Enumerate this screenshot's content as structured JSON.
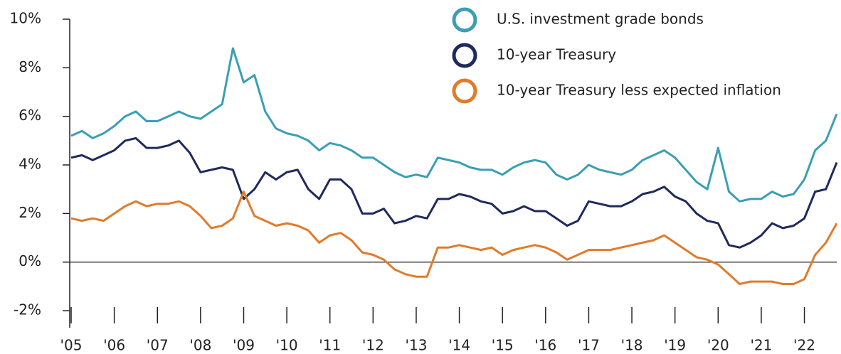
{
  "chart_data": {
    "type": "line",
    "x": [
      2005,
      2005.25,
      2005.5,
      2005.75,
      2006,
      2006.25,
      2006.5,
      2006.75,
      2007,
      2007.25,
      2007.5,
      2007.75,
      2008,
      2008.25,
      2008.5,
      2008.75,
      2009,
      2009.25,
      2009.5,
      2009.75,
      2010,
      2010.25,
      2010.5,
      2010.75,
      2011,
      2011.25,
      2011.5,
      2011.75,
      2012,
      2012.25,
      2012.5,
      2012.75,
      2013,
      2013.25,
      2013.5,
      2013.75,
      2014,
      2014.25,
      2014.5,
      2014.75,
      2015,
      2015.25,
      2015.5,
      2015.75,
      2016,
      2016.25,
      2016.5,
      2016.75,
      2017,
      2017.25,
      2017.5,
      2017.75,
      2018,
      2018.25,
      2018.5,
      2018.75,
      2019,
      2019.25,
      2019.5,
      2019.75,
      2020,
      2020.25,
      2020.5,
      2020.75,
      2021,
      2021.25,
      2021.5,
      2021.75,
      2022,
      2022.25,
      2022.5,
      2022.75
    ],
    "series": [
      {
        "name": "U.S. investment grade bonds",
        "color": "#3a9fb3",
        "values": [
          5.2,
          5.4,
          5.1,
          5.3,
          5.6,
          6.0,
          6.2,
          5.8,
          5.8,
          6.0,
          6.2,
          6.0,
          5.9,
          6.2,
          6.5,
          8.8,
          7.4,
          7.7,
          6.2,
          5.5,
          5.3,
          5.2,
          5.0,
          4.6,
          4.9,
          4.8,
          4.6,
          4.3,
          4.3,
          4.0,
          3.7,
          3.5,
          3.6,
          3.5,
          4.3,
          4.2,
          4.1,
          3.9,
          3.8,
          3.8,
          3.6,
          3.9,
          4.1,
          4.2,
          4.1,
          3.6,
          3.4,
          3.6,
          4.0,
          3.8,
          3.7,
          3.6,
          3.8,
          4.2,
          4.4,
          4.6,
          4.3,
          3.8,
          3.3,
          3.0,
          4.7,
          2.9,
          2.5,
          2.6,
          2.6,
          2.9,
          2.7,
          2.8,
          3.4,
          4.6,
          5.0,
          6.1
        ]
      },
      {
        "name": "10-year Treasury",
        "color": "#1f2a5c",
        "values": [
          4.3,
          4.4,
          4.2,
          4.4,
          4.6,
          5.0,
          5.1,
          4.7,
          4.7,
          4.8,
          5.0,
          4.5,
          3.7,
          3.8,
          3.9,
          3.8,
          2.6,
          3.0,
          3.7,
          3.4,
          3.7,
          3.8,
          3.0,
          2.6,
          3.4,
          3.4,
          3.0,
          2.0,
          2.0,
          2.2,
          1.6,
          1.7,
          1.9,
          1.8,
          2.6,
          2.6,
          2.8,
          2.7,
          2.5,
          2.4,
          2.0,
          2.1,
          2.3,
          2.1,
          2.1,
          1.8,
          1.5,
          1.7,
          2.5,
          2.4,
          2.3,
          2.3,
          2.5,
          2.8,
          2.9,
          3.1,
          2.7,
          2.5,
          2.0,
          1.7,
          1.6,
          0.7,
          0.6,
          0.8,
          1.1,
          1.6,
          1.4,
          1.5,
          1.8,
          2.9,
          3.0,
          4.1
        ]
      },
      {
        "name": "10-year Treasury less expected inflation",
        "color": "#e07b2c",
        "values": [
          1.8,
          1.7,
          1.8,
          1.7,
          2.0,
          2.3,
          2.5,
          2.3,
          2.4,
          2.4,
          2.5,
          2.3,
          1.9,
          1.4,
          1.5,
          1.8,
          2.9,
          1.9,
          1.7,
          1.5,
          1.6,
          1.5,
          1.3,
          0.8,
          1.1,
          1.2,
          0.9,
          0.4,
          0.3,
          0.1,
          -0.3,
          -0.5,
          -0.6,
          -0.6,
          0.6,
          0.6,
          0.7,
          0.6,
          0.5,
          0.6,
          0.3,
          0.5,
          0.6,
          0.7,
          0.6,
          0.4,
          0.1,
          0.3,
          0.5,
          0.5,
          0.5,
          0.6,
          0.7,
          0.8,
          0.9,
          1.1,
          0.8,
          0.5,
          0.2,
          0.1,
          -0.1,
          -0.5,
          -0.9,
          -0.8,
          -0.8,
          -0.8,
          -0.9,
          -0.9,
          -0.7,
          0.3,
          0.8,
          1.6
        ]
      }
    ],
    "xlim": [
      2005,
      2022.75
    ],
    "ylim": [
      -2.7,
      10
    ],
    "yticks": [
      {
        "value": -2,
        "label": "-2%"
      },
      {
        "value": 0,
        "label": "0%"
      },
      {
        "value": 2,
        "label": "2%"
      },
      {
        "value": 4,
        "label": "4%"
      },
      {
        "value": 6,
        "label": "6%"
      },
      {
        "value": 8,
        "label": "8%"
      },
      {
        "value": 10,
        "label": "10%"
      }
    ],
    "xticks": [
      {
        "value": 2005,
        "label": "'05"
      },
      {
        "value": 2006,
        "label": "'06"
      },
      {
        "value": 2007,
        "label": "'07"
      },
      {
        "value": 2008,
        "label": "'08"
      },
      {
        "value": 2009,
        "label": "'09"
      },
      {
        "value": 2010,
        "label": "'10"
      },
      {
        "value": 2011,
        "label": "'11"
      },
      {
        "value": 2012,
        "label": "'12"
      },
      {
        "value": 2013,
        "label": "'13"
      },
      {
        "value": 2014,
        "label": "'14"
      },
      {
        "value": 2015,
        "label": "'15"
      },
      {
        "value": 2016,
        "label": "'16"
      },
      {
        "value": 2017,
        "label": "'17"
      },
      {
        "value": 2018,
        "label": "'18"
      },
      {
        "value": 2019,
        "label": "'19"
      },
      {
        "value": 2020,
        "label": "'20"
      },
      {
        "value": 2021,
        "label": "'21"
      },
      {
        "value": 2022,
        "label": "'22"
      }
    ],
    "grid": false,
    "legend": "top-right"
  }
}
